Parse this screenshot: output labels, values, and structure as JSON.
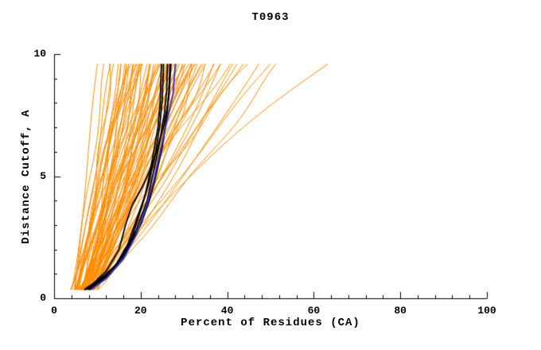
{
  "colors": {
    "background": "#ffffff",
    "axis": "#000000",
    "orange_series": "#ff8c00",
    "black_series": "#000000",
    "blue_series": "#3333cc"
  },
  "chart_data": {
    "type": "line",
    "title": "T0963",
    "xlabel": "Percent of Residues (CA)",
    "ylabel": "Distance Cutoff, A",
    "xlim": [
      0,
      100
    ],
    "ylim": [
      0,
      10
    ],
    "x_ticks": [
      0,
      20,
      40,
      60,
      80,
      100
    ],
    "y_ticks": [
      0,
      5,
      10
    ],
    "x_minor_step": 4,
    "y_minor_step": 1,
    "grid": false,
    "legend": "none",
    "curve_y_range": [
      0.35,
      9.6
    ],
    "orange_curves_note": "each entry = [percent_at_low_cutoff, percent_at_cutoff_9.6, shape_exponent]",
    "orange_curves": [
      [
        4,
        10,
        0.8
      ],
      [
        4.5,
        12,
        1.0
      ],
      [
        5,
        13,
        0.7
      ],
      [
        5,
        14,
        1.2
      ],
      [
        5.5,
        15,
        0.9
      ],
      [
        6,
        15,
        0.6
      ],
      [
        6,
        16,
        1.1
      ],
      [
        6.5,
        16,
        0.8
      ],
      [
        7,
        17,
        1.3
      ],
      [
        7,
        17,
        0.7
      ],
      [
        4,
        18,
        0.9
      ],
      [
        5,
        18,
        1.1
      ],
      [
        6,
        18,
        0.6
      ],
      [
        6.5,
        19,
        1.0
      ],
      [
        7,
        19,
        0.8
      ],
      [
        7.5,
        20,
        1.2
      ],
      [
        8,
        20,
        0.7
      ],
      [
        5,
        20,
        0.9
      ],
      [
        5.5,
        21,
        1.1
      ],
      [
        6,
        21,
        0.8
      ],
      [
        6.5,
        22,
        0.6
      ],
      [
        7,
        22,
        1.0
      ],
      [
        7.5,
        22,
        1.3
      ],
      [
        8,
        23,
        0.9
      ],
      [
        8.5,
        23,
        0.7
      ],
      [
        5,
        24,
        1.1
      ],
      [
        5.5,
        24,
        0.8
      ],
      [
        6,
        25,
        1.0
      ],
      [
        6.5,
        25,
        0.65
      ],
      [
        7,
        25,
        1.2
      ],
      [
        7.5,
        26,
        0.9
      ],
      [
        8,
        26,
        0.75
      ],
      [
        8.5,
        27,
        1.05
      ],
      [
        9,
        27,
        0.85
      ],
      [
        5,
        28,
        1.15
      ],
      [
        5.5,
        28,
        0.7
      ],
      [
        6,
        28,
        0.95
      ],
      [
        6.5,
        29,
        1.25
      ],
      [
        7,
        29,
        0.8
      ],
      [
        7.5,
        30,
        1.0
      ],
      [
        8,
        30,
        0.7
      ],
      [
        8.5,
        30,
        1.2
      ],
      [
        9,
        31,
        0.9
      ],
      [
        9.5,
        31,
        0.75
      ],
      [
        6,
        32,
        1.05
      ],
      [
        6.5,
        32,
        0.85
      ],
      [
        7,
        33,
        1.15
      ],
      [
        7.5,
        33,
        0.7
      ],
      [
        8,
        34,
        0.95
      ],
      [
        8.5,
        35,
        1.25
      ],
      [
        9,
        35,
        0.8
      ],
      [
        6,
        36,
        1.0
      ],
      [
        6.5,
        37,
        0.72
      ],
      [
        7,
        38,
        1.1
      ],
      [
        7.5,
        39,
        0.88
      ],
      [
        8,
        40,
        1.2
      ],
      [
        8.5,
        41,
        0.78
      ],
      [
        9,
        42,
        1.02
      ],
      [
        6.5,
        43,
        0.9
      ],
      [
        7,
        45,
        1.12
      ],
      [
        7.5,
        47,
        0.82
      ],
      [
        8,
        50,
        1.0
      ],
      [
        9,
        52,
        0.92
      ],
      [
        10,
        63,
        1.3
      ],
      [
        4.5,
        14,
        0.95
      ],
      [
        5.5,
        17,
        1.18
      ],
      [
        6.5,
        20,
        0.68
      ],
      [
        7.5,
        23,
        1.08
      ],
      [
        8.5,
        26,
        0.78
      ],
      [
        9.5,
        29,
        1.22
      ],
      [
        4,
        16,
        0.88
      ],
      [
        5,
        19,
        1.02
      ],
      [
        6,
        22,
        0.62
      ],
      [
        7,
        26,
        1.14
      ],
      [
        8,
        31,
        0.84
      ],
      [
        9,
        36,
        1.06
      ],
      [
        10,
        33,
        0.74
      ],
      [
        10,
        24,
        0.96
      ]
    ],
    "black_curves": [
      [
        [
          7,
          0.35
        ],
        [
          10,
          0.7
        ],
        [
          14,
          1.3
        ],
        [
          17,
          2.2
        ],
        [
          19,
          3.2
        ],
        [
          21,
          4.2
        ],
        [
          22,
          5.0
        ],
        [
          23,
          6.0
        ],
        [
          24,
          7.0
        ],
        [
          24.5,
          8.0
        ],
        [
          24.8,
          9.6
        ]
      ],
      [
        [
          7.5,
          0.35
        ],
        [
          11,
          0.8
        ],
        [
          15,
          1.5
        ],
        [
          18,
          2.5
        ],
        [
          20,
          3.6
        ],
        [
          22,
          4.8
        ],
        [
          23.5,
          6.0
        ],
        [
          24.5,
          7.2
        ],
        [
          25,
          8.2
        ],
        [
          25.3,
          9.6
        ]
      ],
      [
        [
          8,
          0.35
        ],
        [
          12,
          0.9
        ],
        [
          16,
          1.7
        ],
        [
          19,
          2.8
        ],
        [
          21.5,
          4.0
        ],
        [
          23,
          5.2
        ],
        [
          24.5,
          6.5
        ],
        [
          25.5,
          7.6
        ],
        [
          26,
          8.5
        ],
        [
          26.2,
          9.6
        ]
      ],
      [
        [
          7,
          0.35
        ],
        [
          9,
          0.6
        ],
        [
          12,
          1.1
        ],
        [
          15,
          2.0
        ],
        [
          16.5,
          3.0
        ],
        [
          18,
          3.8
        ],
        [
          20.5,
          4.6
        ],
        [
          22.5,
          5.4
        ],
        [
          24,
          6.2
        ],
        [
          25.5,
          7.2
        ],
        [
          26.5,
          8.2
        ],
        [
          27,
          9.6
        ]
      ],
      [
        [
          8,
          0.35
        ],
        [
          13,
          1.0
        ],
        [
          17,
          2.0
        ],
        [
          20,
          3.0
        ],
        [
          22,
          4.0
        ],
        [
          23.5,
          5.0
        ],
        [
          25,
          6.2
        ],
        [
          26,
          7.4
        ],
        [
          26.5,
          8.4
        ],
        [
          26.8,
          9.6
        ]
      ]
    ],
    "blue_curve": [
      [
        8.5,
        0.35
      ],
      [
        12,
        0.8
      ],
      [
        16,
        1.6
      ],
      [
        19,
        2.6
      ],
      [
        21,
        3.6
      ],
      [
        23,
        4.8
      ],
      [
        24.5,
        6.0
      ],
      [
        26,
        7.2
      ],
      [
        27.5,
        8.4
      ],
      [
        28,
        9.6
      ]
    ]
  }
}
